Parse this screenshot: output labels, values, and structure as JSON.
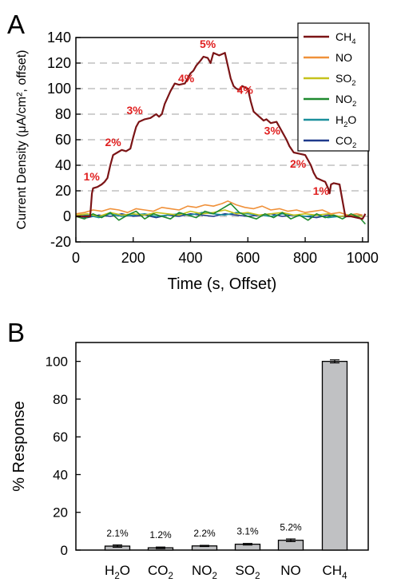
{
  "colors": {
    "CH4": "#7b1416",
    "NO": "#f0913a",
    "SO2": "#c6c21c",
    "NO2": "#1f8a2e",
    "H2O": "#1a8f9c",
    "CO2": "#1f3a8c",
    "step_label": "#e02020",
    "bar_fill": "#c0c1c3",
    "grid": "#b5b5b5"
  },
  "chart_data": [
    {
      "panel_label": "A",
      "type": "line",
      "xlabel": "Time (s, Offset)",
      "ylabel": "Current Density (μA/cm², offset)",
      "xlim": [
        0,
        1020
      ],
      "ylim": [
        -20,
        140
      ],
      "xticks": [
        0,
        200,
        400,
        600,
        800,
        1000
      ],
      "yticks": [
        -20,
        0,
        20,
        40,
        60,
        80,
        100,
        120,
        140
      ],
      "grid": "horizontal dashed",
      "legend_position": "top-right",
      "series": [
        {
          "name": "CH4",
          "name_base": "CH",
          "name_sub": "4",
          "color_key": "CH4",
          "x": [
            0,
            50,
            56,
            60,
            75,
            90,
            100,
            110,
            120,
            130,
            145,
            160,
            175,
            190,
            200,
            210,
            220,
            240,
            260,
            280,
            290,
            300,
            310,
            330,
            345,
            360,
            380,
            390,
            400,
            410,
            420,
            435,
            445,
            460,
            470,
            480,
            500,
            520,
            530,
            540,
            550,
            560,
            570,
            580,
            600,
            610,
            620,
            640,
            655,
            665,
            680,
            700,
            720,
            735,
            745,
            760,
            780,
            800,
            820,
            830,
            840,
            860,
            870,
            880,
            885,
            890,
            900,
            920,
            940,
            960,
            1000,
            1010
          ],
          "y": [
            0,
            0,
            18,
            22,
            23,
            25,
            27,
            30,
            40,
            48,
            50,
            52,
            51,
            53,
            62,
            70,
            74,
            76,
            77,
            80,
            78,
            80,
            88,
            98,
            104,
            103,
            104,
            108,
            112,
            114,
            118,
            122,
            125,
            124,
            120,
            128,
            126,
            128,
            118,
            108,
            102,
            100,
            99,
            102,
            100,
            90,
            82,
            78,
            75,
            76,
            73,
            74,
            66,
            60,
            55,
            50,
            49,
            48,
            40,
            34,
            30,
            28,
            27,
            22,
            18,
            25,
            26,
            25,
            0,
            0,
            -2,
            2
          ]
        },
        {
          "name": "NO",
          "name_base": "NO",
          "name_sub": "",
          "color_key": "NO",
          "x": [
            0,
            30,
            60,
            90,
            120,
            150,
            180,
            210,
            240,
            270,
            300,
            330,
            360,
            390,
            420,
            450,
            480,
            510,
            530,
            560,
            590,
            620,
            650,
            680,
            710,
            740,
            770,
            800,
            830,
            860,
            890,
            920,
            950,
            980,
            1000
          ],
          "y": [
            2,
            3,
            5,
            4,
            6,
            5,
            3,
            6,
            5,
            4,
            7,
            6,
            5,
            8,
            7,
            9,
            8,
            10,
            12,
            9,
            7,
            6,
            8,
            5,
            6,
            4,
            5,
            3,
            4,
            5,
            2,
            3,
            1,
            2,
            1
          ]
        },
        {
          "name": "SO2",
          "name_base": "SO",
          "name_sub": "2",
          "color_key": "SO2",
          "x": [
            0,
            40,
            80,
            120,
            160,
            200,
            240,
            280,
            320,
            360,
            400,
            440,
            480,
            520,
            560,
            600,
            640,
            680,
            720,
            760,
            800,
            840,
            880,
            920,
            960,
            1000
          ],
          "y": [
            1,
            2,
            0,
            3,
            1,
            2,
            1,
            3,
            2,
            1,
            4,
            2,
            3,
            5,
            2,
            3,
            1,
            2,
            3,
            1,
            2,
            1,
            2,
            0,
            1,
            0
          ]
        },
        {
          "name": "NO2",
          "name_base": "NO",
          "name_sub": "2",
          "color_key": "NO2",
          "x": [
            0,
            30,
            60,
            90,
            120,
            150,
            180,
            210,
            240,
            270,
            300,
            330,
            360,
            390,
            420,
            450,
            480,
            510,
            540,
            570,
            600,
            630,
            660,
            690,
            720,
            750,
            780,
            810,
            840,
            870,
            900,
            930,
            960,
            990,
            1010
          ],
          "y": [
            0,
            -2,
            2,
            -1,
            3,
            -3,
            1,
            4,
            -2,
            2,
            0,
            -2,
            3,
            1,
            -1,
            4,
            2,
            6,
            10,
            3,
            0,
            -2,
            2,
            -1,
            3,
            -2,
            1,
            -3,
            2,
            -1,
            1,
            -2,
            2,
            -1,
            -6
          ]
        },
        {
          "name": "H2O",
          "name_base": "H",
          "name_sub": "2",
          "name_post": "O",
          "color_key": "H2O",
          "x": [
            0,
            40,
            80,
            120,
            160,
            200,
            240,
            280,
            320,
            360,
            400,
            440,
            480,
            520,
            560,
            600,
            640,
            680,
            720,
            760,
            800,
            840,
            880,
            920,
            960,
            1000
          ],
          "y": [
            0,
            1,
            -1,
            2,
            0,
            1,
            2,
            0,
            1,
            2,
            1,
            3,
            2,
            1,
            3,
            2,
            1,
            0,
            2,
            1,
            0,
            1,
            -1,
            0,
            1,
            0
          ]
        },
        {
          "name": "CO2",
          "name_base": "CO",
          "name_sub": "2",
          "color_key": "CO2",
          "x": [
            0,
            40,
            80,
            120,
            160,
            200,
            240,
            280,
            320,
            360,
            400,
            440,
            480,
            520,
            560,
            600,
            640,
            680,
            720,
            760,
            800,
            840,
            880,
            920,
            960,
            1000
          ],
          "y": [
            0,
            -1,
            1,
            0,
            2,
            0,
            1,
            -1,
            1,
            0,
            2,
            1,
            0,
            2,
            1,
            0,
            1,
            2,
            0,
            1,
            0,
            -1,
            1,
            0,
            0,
            1
          ]
        }
      ],
      "annotations": [
        {
          "text": "1%",
          "x": 55,
          "y": 28
        },
        {
          "text": "2%",
          "x": 130,
          "y": 55
        },
        {
          "text": "3%",
          "x": 205,
          "y": 80
        },
        {
          "text": "4%",
          "x": 385,
          "y": 105
        },
        {
          "text": "5%",
          "x": 460,
          "y": 132
        },
        {
          "text": "4%",
          "x": 590,
          "y": 96
        },
        {
          "text": "3%",
          "x": 685,
          "y": 64
        },
        {
          "text": "2%",
          "x": 775,
          "y": 38
        },
        {
          "text": "1%",
          "x": 855,
          "y": 17
        }
      ]
    },
    {
      "panel_label": "B",
      "type": "bar",
      "ylabel": "% Response",
      "ylim": [
        0,
        110
      ],
      "yticks": [
        0,
        20,
        40,
        60,
        80,
        100
      ],
      "categories": [
        {
          "base": "H",
          "sub": "2",
          "post": "O"
        },
        {
          "base": "CO",
          "sub": "2",
          "post": ""
        },
        {
          "base": "NO",
          "sub": "2",
          "post": ""
        },
        {
          "base": "SO",
          "sub": "2",
          "post": ""
        },
        {
          "base": "NO",
          "sub": "",
          "post": ""
        },
        {
          "base": "CH",
          "sub": "4",
          "post": ""
        }
      ],
      "values": [
        2.1,
        1.2,
        2.2,
        3.1,
        5.2,
        100
      ],
      "errors": [
        0.6,
        0.4,
        0.3,
        0.4,
        0.7,
        0.8
      ],
      "value_labels": [
        "2.1%",
        "1.2%",
        "2.2%",
        "3.1%",
        "5.2%",
        ""
      ]
    }
  ]
}
